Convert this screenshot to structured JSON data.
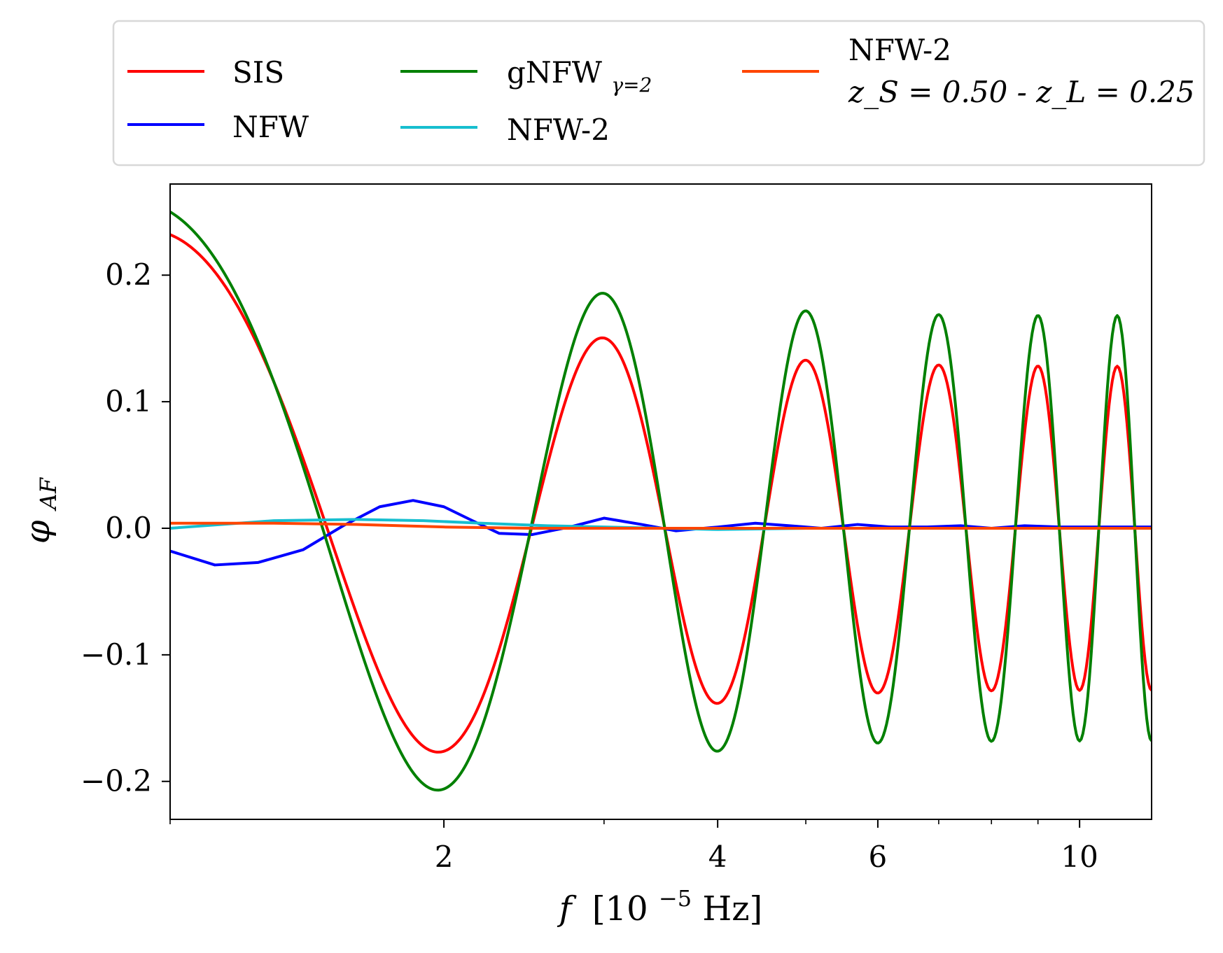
{
  "chart_data": {
    "type": "line",
    "xlabel": "f [10^-5 Hz]",
    "xlabel_parts": {
      "var": "f",
      "open": "[10",
      "exp": "−5",
      "close": " Hz]"
    },
    "ylabel": "φ_AF",
    "ylabel_parts": {
      "main": "φ",
      "sub": "AF"
    },
    "x_scale": "log",
    "xlim": [
      1.0,
      12.0
    ],
    "ylim": [
      -0.23,
      0.272
    ],
    "x_major_ticks": [
      {
        "value": 2,
        "label": "2"
      },
      {
        "value": 4,
        "label": "4"
      },
      {
        "value": 6,
        "label": "6"
      },
      {
        "value": 10,
        "label": "10"
      }
    ],
    "x_minor_ticks": [
      1,
      3,
      5,
      7,
      8,
      9
    ],
    "y_ticks": [
      {
        "value": 0.2,
        "label": "0.2"
      },
      {
        "value": 0.1,
        "label": "0.1"
      },
      {
        "value": 0.0,
        "label": "0.0"
      },
      {
        "value": -0.1,
        "label": "−0.1"
      },
      {
        "value": -0.2,
        "label": "−0.2"
      }
    ],
    "grid": false,
    "legend_position": "top, above plot",
    "series": [
      {
        "name": "SIS",
        "color": "#ff0000",
        "kind": "osc",
        "params": {
          "A0": 0.232,
          "Ainf": 0.128,
          "fa": 1.3,
          "P": 2.7,
          "b": 0.5,
          "T": 1.3,
          "dc": -0.015,
          "dd": 0.7
        }
      },
      {
        "name": "NFW",
        "color": "#0000ff",
        "kind": "points",
        "x": [
          1.0,
          1.12,
          1.25,
          1.4,
          1.55,
          1.7,
          1.85,
          2.0,
          2.15,
          2.3,
          2.5,
          2.75,
          3.0,
          3.3,
          3.6,
          4.0,
          4.4,
          4.8,
          5.2,
          5.7,
          6.2,
          6.8,
          7.4,
          8.0,
          8.7,
          9.5,
          10.3,
          11.0,
          12.0
        ],
        "y": [
          -0.018,
          -0.029,
          -0.027,
          -0.017,
          0.002,
          0.017,
          0.022,
          0.017,
          0.006,
          -0.004,
          -0.005,
          0.001,
          0.008,
          0.003,
          -0.002,
          0.001,
          0.004,
          0.002,
          0.0,
          0.003,
          0.001,
          0.001,
          0.002,
          0.0,
          0.002,
          0.001,
          0.001,
          0.001,
          0.001
        ]
      },
      {
        "name": "gNFW_γ=2",
        "label_main": "gNFW",
        "label_sub": "γ=2",
        "color": "#008000",
        "kind": "osc",
        "params": {
          "A0": 0.25,
          "Ainf": 0.168,
          "fa": 1.3,
          "P": 2.7,
          "b": 0.5,
          "T": 1.3,
          "dc": -0.04,
          "dd": 0.7
        }
      },
      {
        "name": "NFW-2",
        "color": "#17becf",
        "kind": "points",
        "x": [
          1.0,
          1.3,
          1.6,
          1.9,
          2.2,
          2.6,
          3.0,
          3.5,
          4.0,
          5.0,
          6.0,
          8.0,
          10.0,
          12.0
        ],
        "y": [
          0.0,
          0.006,
          0.007,
          0.006,
          0.004,
          0.002,
          0.001,
          0.0,
          -0.001,
          0.0,
          0.0,
          0.0,
          0.0,
          0.0
        ]
      },
      {
        "name": "NFW-2 z_S = 0.50 - z_L = 0.25",
        "label_line1": "NFW-2",
        "label_line2": "z_S = 0.50 - z_L = 0.25",
        "color": "#ff4500",
        "kind": "points",
        "x": [
          1.0,
          1.3,
          1.6,
          2.0,
          2.5,
          3.0,
          4.0,
          6.0,
          8.0,
          12.0
        ],
        "y": [
          0.004,
          0.004,
          0.003,
          0.001,
          0.0,
          0.0,
          0.0,
          0.0,
          0.0,
          0.0
        ]
      }
    ]
  }
}
